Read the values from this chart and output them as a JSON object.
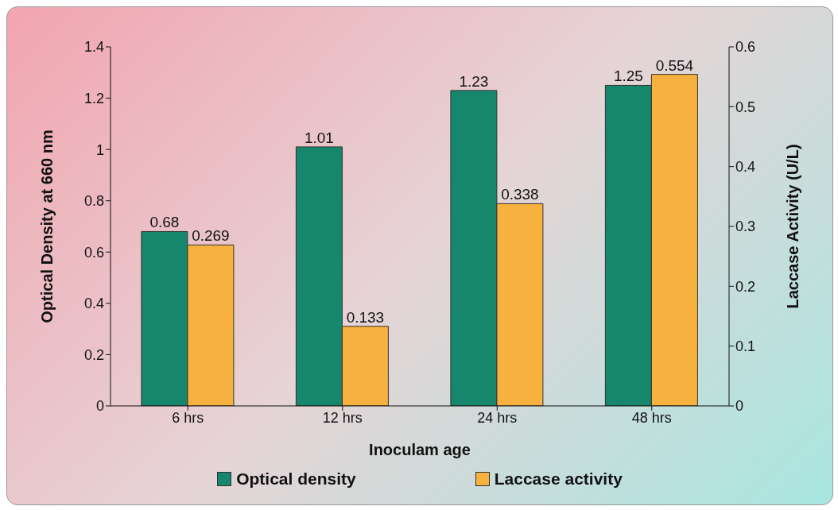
{
  "chart_data": {
    "type": "bar",
    "xlabel": "Inoculam age",
    "ylabel": "Optical Density at 660 nm",
    "y2label": "Laccase Activity (U/L)",
    "categories": [
      "6 hrs",
      "12 hrs",
      "24 hrs",
      "48 hrs"
    ],
    "series": [
      {
        "name": "Optical density",
        "color": "#16866c",
        "values": [
          0.68,
          1.01,
          1.23,
          1.25
        ]
      },
      {
        "name": "Laccase activity",
        "color": "#f6b13e",
        "values": [
          0.269,
          0.133,
          0.338,
          0.554
        ],
        "axis": "y2"
      }
    ],
    "ylim": [
      0,
      1.4
    ],
    "yticks": [
      0,
      0.2,
      0.4,
      0.6,
      0.8,
      1,
      1.2,
      1.4
    ],
    "y2lim": [
      0,
      0.6
    ],
    "y2ticks": [
      0,
      0.1,
      0.2,
      0.3,
      0.4,
      0.5,
      0.6
    ],
    "data_labels": true,
    "grid": false,
    "legend": "bottom"
  }
}
